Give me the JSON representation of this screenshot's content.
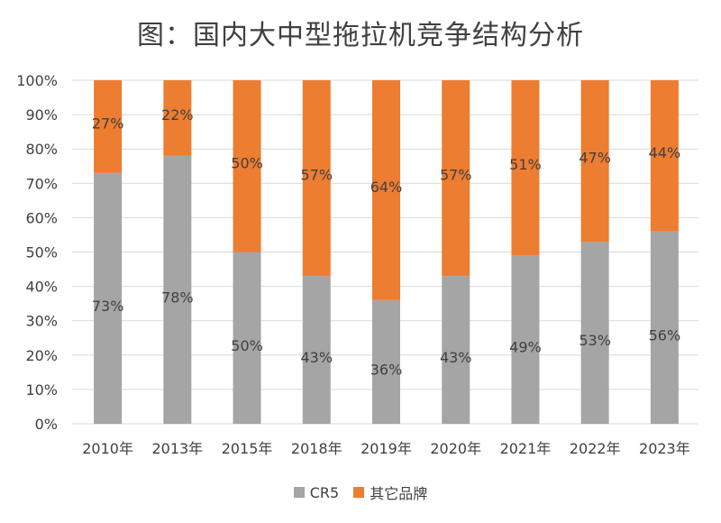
{
  "chart_data": {
    "type": "bar",
    "stacked": true,
    "title": "图：国内大中型拖拉机竞争结构分析",
    "categories": [
      "2010年",
      "2013年",
      "2015年",
      "2018年",
      "2019年",
      "2020年",
      "2021年",
      "2022年",
      "2023年"
    ],
    "series": [
      {
        "name": "CR5",
        "color": "#a5a5a5",
        "values": [
          73,
          78,
          50,
          43,
          36,
          43,
          49,
          53,
          56
        ]
      },
      {
        "name": "其它品牌",
        "color": "#ed7d31",
        "values": [
          27,
          22,
          50,
          57,
          64,
          57,
          51,
          47,
          44
        ]
      }
    ],
    "ylim": [
      0,
      100
    ],
    "yticks": [
      "0%",
      "10%",
      "20%",
      "30%",
      "40%",
      "50%",
      "60%",
      "70%",
      "80%",
      "90%",
      "100%"
    ],
    "legend_position": "bottom",
    "grid": true
  }
}
